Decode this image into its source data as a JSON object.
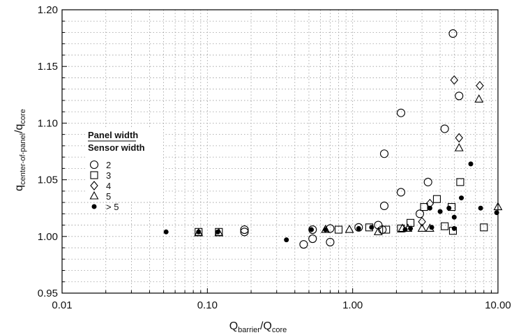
{
  "chart_data": {
    "type": "scatter",
    "x_scale": "log",
    "xlim": [
      0.01,
      10
    ],
    "ylim": [
      0.95,
      1.2
    ],
    "x_ticks": [
      "0.01",
      "0.10",
      "1.00",
      "10.00"
    ],
    "y_ticks": [
      "0.95",
      "1.00",
      "1.05",
      "1.10",
      "1.15",
      "1.20"
    ],
    "grid": true,
    "legend_position": "upper-left",
    "xlabel": {
      "main": "Q",
      "sub": "barrier",
      "sep": "/Q",
      "sub2": "core"
    },
    "ylabel": {
      "main": "q",
      "sub": "center-of-panel",
      "sep": "/q",
      "sub2": "core"
    },
    "legend": {
      "title_line1": "Panel width",
      "title_line2": "Sensor width",
      "entries": [
        {
          "marker": "circle",
          "label": "2"
        },
        {
          "marker": "square",
          "label": "3"
        },
        {
          "marker": "diamond",
          "label": "4"
        },
        {
          "marker": "triangle",
          "label": "5"
        },
        {
          "marker": "dot",
          "label": "> 5"
        }
      ]
    },
    "series": [
      {
        "name": "2",
        "marker": "circle",
        "points": [
          [
            0.18,
            1.006
          ],
          [
            0.18,
            1.004
          ],
          [
            0.46,
            0.993
          ],
          [
            0.53,
            0.998
          ],
          [
            0.53,
            1.006
          ],
          [
            0.7,
            0.995
          ],
          [
            0.7,
            1.007
          ],
          [
            1.1,
            1.008
          ],
          [
            1.5,
            1.01
          ],
          [
            1.6,
            1.006
          ],
          [
            1.65,
            1.027
          ],
          [
            1.65,
            1.073
          ],
          [
            2.15,
            1.039
          ],
          [
            2.15,
            1.109
          ],
          [
            2.9,
            1.02
          ],
          [
            3.3,
            1.048
          ],
          [
            4.3,
            1.095
          ],
          [
            4.9,
            1.179
          ],
          [
            5.4,
            1.124
          ]
        ]
      },
      {
        "name": "3",
        "marker": "square",
        "points": [
          [
            0.087,
            1.004
          ],
          [
            0.12,
            1.004
          ],
          [
            0.8,
            1.006
          ],
          [
            1.3,
            1.008
          ],
          [
            1.7,
            1.006
          ],
          [
            2.15,
            1.007
          ],
          [
            2.5,
            1.012
          ],
          [
            3.1,
            1.026
          ],
          [
            3.8,
            1.033
          ],
          [
            4.3,
            1.009
          ],
          [
            4.8,
            1.026
          ],
          [
            4.9,
            1.005
          ],
          [
            5.5,
            1.048
          ],
          [
            8.0,
            1.008
          ]
        ]
      },
      {
        "name": "4",
        "marker": "diamond",
        "points": [
          [
            3.0,
            1.013
          ],
          [
            3.4,
            1.029
          ],
          [
            5.0,
            1.138
          ],
          [
            5.4,
            1.087
          ],
          [
            7.5,
            1.133
          ]
        ]
      },
      {
        "name": "5",
        "marker": "triangle",
        "points": [
          [
            0.087,
            1.003
          ],
          [
            0.12,
            1.003
          ],
          [
            0.65,
            1.006
          ],
          [
            0.95,
            1.006
          ],
          [
            1.5,
            1.004
          ],
          [
            2.2,
            1.007
          ],
          [
            2.4,
            1.007
          ],
          [
            3.0,
            1.007
          ],
          [
            3.4,
            1.007
          ],
          [
            5.4,
            1.078
          ],
          [
            7.4,
            1.121
          ],
          [
            10.0,
            1.026
          ]
        ]
      },
      {
        "name": "> 5",
        "marker": "dot",
        "points": [
          [
            0.052,
            1.004
          ],
          [
            0.087,
            1.004
          ],
          [
            0.118,
            1.004
          ],
          [
            0.35,
            0.997
          ],
          [
            0.52,
            1.006
          ],
          [
            0.65,
            1.006
          ],
          [
            1.1,
            1.007
          ],
          [
            1.35,
            1.008
          ],
          [
            2.3,
            1.006
          ],
          [
            2.5,
            1.007
          ],
          [
            3.4,
            1.025
          ],
          [
            3.5,
            1.008
          ],
          [
            4.0,
            1.022
          ],
          [
            4.6,
            1.025
          ],
          [
            5.0,
            1.017
          ],
          [
            5.0,
            1.007
          ],
          [
            5.6,
            1.034
          ],
          [
            6.5,
            1.064
          ],
          [
            7.6,
            1.025
          ],
          [
            9.8,
            1.021
          ]
        ]
      }
    ]
  }
}
